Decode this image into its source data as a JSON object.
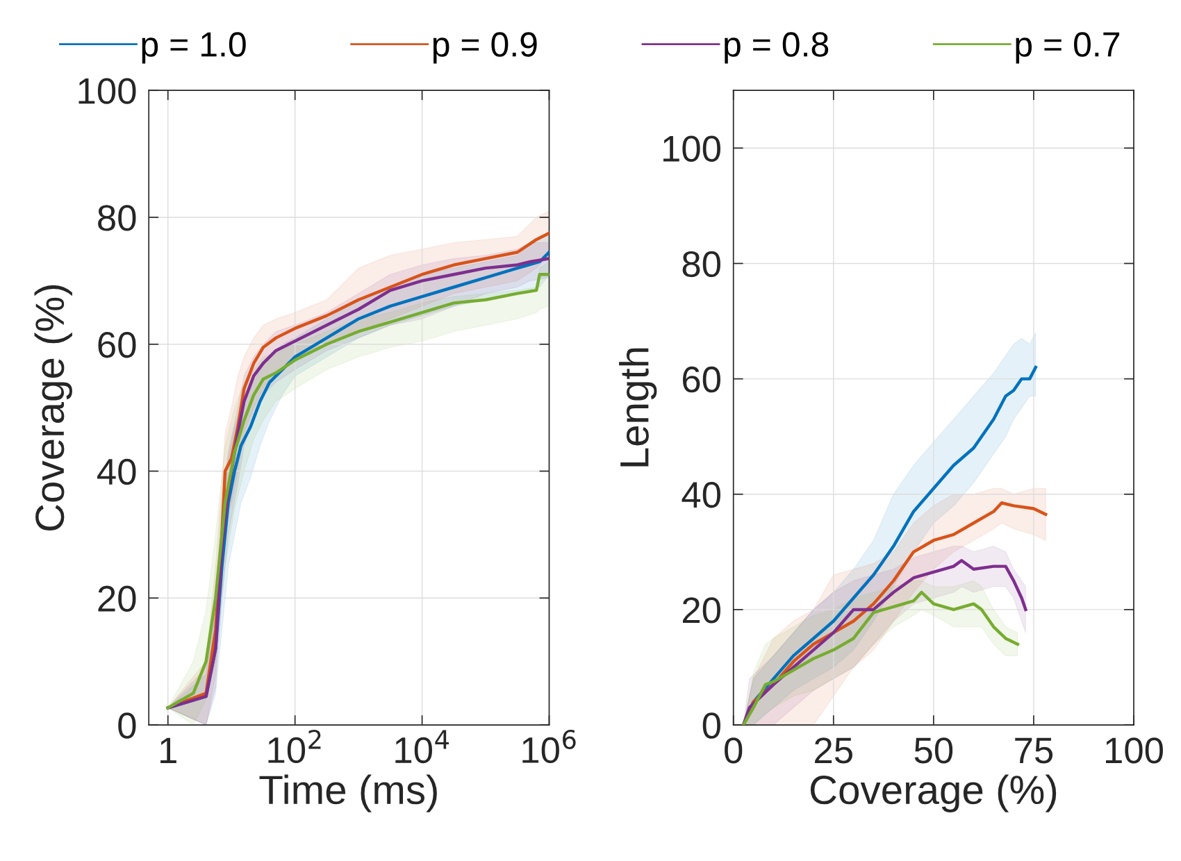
{
  "chart_data": [
    {
      "type": "line",
      "xlabel": "Time (ms)",
      "ylabel": "Coverage (%)",
      "log": "x",
      "xlim": [
        0.5,
        1000000
      ],
      "xticks": [
        1,
        {
          "value": 100,
          "label": "10$^{2}$"
        },
        {
          "value": 10000,
          "label": "10$^{4}$"
        },
        {
          "value": 1000000,
          "label": "10$^{6}$"
        }
      ],
      "ylim": [
        0,
        100
      ],
      "yticks": [
        0,
        20,
        40,
        60,
        80,
        100
      ],
      "grid": true,
      "legend": "top",
      "series": [
        {
          "name": "p = 1.0",
          "color": "#0072bd",
          "x": [
            1,
            3.98,
            5.62,
            7.08,
            8.91,
            11.2,
            14.1,
            20,
            28.2,
            39.8,
            63.1,
            100,
            316,
            1000,
            3162,
            10000,
            31623,
            100000,
            316228,
            707946,
            1000000
          ],
          "values": [
            2.7,
            4.5,
            12,
            25,
            35,
            40,
            44,
            47,
            51,
            54,
            56,
            58,
            61,
            64,
            66,
            67.5,
            69,
            70.5,
            72,
            73,
            74.5
          ],
          "lower": [
            2.7,
            0,
            5,
            15,
            25,
            30,
            35,
            39,
            44,
            48,
            52,
            55,
            58,
            61,
            63,
            64.5,
            66,
            67,
            68,
            69,
            71
          ],
          "upper": [
            2.7,
            8,
            18,
            32,
            42,
            47,
            50,
            53,
            56,
            58,
            60,
            61,
            64,
            67,
            69,
            71,
            72,
            73,
            74,
            77,
            77
          ]
        },
        {
          "name": "p = 0.9",
          "color": "#d95319",
          "x": [
            1,
            3.98,
            5.62,
            7.08,
            7.94,
            10,
            12.6,
            15.8,
            22.4,
            31.6,
            50.1,
            100,
            316,
            1000,
            3162,
            10000,
            31623,
            100000,
            316228,
            630957,
            1000000
          ],
          "values": [
            2.7,
            5,
            15,
            30,
            40,
            42,
            47,
            53,
            57,
            59.5,
            61,
            62.5,
            64.5,
            67,
            69,
            71,
            72.5,
            73.5,
            74.5,
            76.5,
            77.5
          ],
          "lower": [
            2.7,
            0,
            8,
            22,
            32,
            35,
            40,
            46,
            50,
            53,
            56,
            58,
            60,
            62,
            64,
            66,
            68,
            69,
            70,
            72,
            74
          ],
          "upper": [
            2.7,
            10,
            25,
            38,
            46,
            50,
            55,
            58,
            61,
            63,
            64,
            65,
            67,
            72,
            74,
            75,
            76,
            76.5,
            77,
            80,
            81
          ]
        },
        {
          "name": "p = 0.8",
          "color": "#7e2f8e",
          "x": [
            1,
            3.98,
            5.62,
            7.08,
            8.91,
            12.6,
            15.8,
            22.4,
            31.6,
            50.1,
            100,
            316,
            1000,
            3162,
            10000,
            31623,
            100000,
            316228,
            501187,
            1000000
          ],
          "values": [
            2.7,
            4.5,
            12,
            28,
            37,
            46,
            51,
            55,
            57,
            59,
            60.5,
            63,
            65.5,
            68.5,
            70,
            71,
            72,
            72.5,
            73,
            73.5
          ],
          "lower": [
            2.7,
            0,
            6,
            20,
            30,
            38,
            44,
            49,
            52,
            54,
            56,
            59,
            61,
            63,
            64,
            66,
            68,
            69,
            70,
            70.5
          ],
          "upper": [
            2.7,
            9,
            20,
            35,
            43,
            50,
            55,
            58,
            60,
            62,
            63,
            65,
            68,
            71,
            72.5,
            73.5,
            74,
            75,
            76,
            76
          ]
        },
        {
          "name": "p = 0.7",
          "color": "#77ac30",
          "x": [
            1,
            2.51,
            3.98,
            5.62,
            7.94,
            11.2,
            15.8,
            22.4,
            31.6,
            50.1,
            100,
            316,
            1000,
            3162,
            10000,
            31623,
            100000,
            316228,
            630957,
            707946,
            1000000
          ],
          "values": [
            2.7,
            5,
            10,
            20,
            35,
            43,
            48,
            52,
            54.5,
            55.5,
            57.5,
            60,
            62,
            63.5,
            65,
            66.5,
            67,
            68,
            68.5,
            71,
            71
          ],
          "lower": [
            2.7,
            0,
            4,
            10,
            25,
            34,
            40,
            45,
            48,
            51,
            53,
            56,
            58,
            59.5,
            60.5,
            62,
            63,
            64,
            65,
            65.5,
            66
          ],
          "upper": [
            2.7,
            10,
            18,
            30,
            44,
            50,
            54,
            56,
            58,
            58.5,
            60,
            62,
            64,
            65,
            66.5,
            67.5,
            68,
            68.5,
            69,
            72,
            73
          ]
        }
      ]
    },
    {
      "type": "line",
      "xlabel": "Coverage (%)",
      "ylabel": "Length",
      "xlim": [
        0,
        100
      ],
      "xticks": [
        0,
        25,
        50,
        75,
        100
      ],
      "ylim": [
        0,
        110
      ],
      "yticks": [
        0,
        20,
        40,
        60,
        80,
        100
      ],
      "grid": true,
      "series": [
        {
          "color": "#0072bd",
          "x": [
            2.5,
            5,
            10,
            15,
            20,
            25,
            30,
            35,
            40,
            45,
            50,
            55,
            60,
            65,
            68,
            70,
            72,
            74,
            75.5
          ],
          "values": [
            0,
            4,
            8,
            12,
            15,
            18,
            22,
            26,
            31,
            37,
            41,
            45,
            48,
            53,
            57,
            58,
            60,
            60,
            62
          ],
          "lower": [
            0,
            0,
            3,
            6,
            8,
            10,
            13,
            18,
            24,
            30,
            35,
            38,
            42,
            47,
            50,
            53,
            55,
            57,
            57
          ],
          "upper": [
            0,
            8,
            12,
            16,
            20,
            23,
            27,
            32,
            40,
            45,
            49,
            53,
            57,
            61,
            64,
            66,
            67,
            66,
            68
          ]
        },
        {
          "color": "#d95319",
          "x": [
            2.5,
            5,
            10,
            15,
            20,
            25,
            30,
            35,
            40,
            45,
            50,
            55,
            60,
            65,
            67,
            70,
            75,
            78
          ],
          "values": [
            0,
            4,
            7,
            11,
            14,
            16,
            18,
            21,
            25,
            30,
            32,
            33,
            35,
            37,
            38.5,
            38,
            37.5,
            36.5
          ],
          "lower": [
            0,
            0,
            0,
            0,
            0,
            5,
            10,
            13,
            18,
            23,
            27,
            30,
            32,
            34,
            35,
            34,
            33,
            32
          ],
          "upper": [
            0,
            8,
            15,
            18,
            20,
            26,
            27,
            28,
            30,
            35,
            38,
            40,
            40,
            41,
            41,
            40,
            41,
            41
          ]
        },
        {
          "color": "#7e2f8e",
          "x": [
            2.5,
            4,
            10,
            15,
            20,
            25,
            30,
            35,
            40,
            45,
            50,
            55,
            57,
            60,
            65,
            68,
            70,
            72,
            73
          ],
          "values": [
            0,
            3,
            7,
            10,
            13,
            16,
            20,
            20,
            23,
            25.5,
            26.5,
            27.5,
            28.5,
            27,
            27.5,
            27.5,
            25,
            22,
            20
          ],
          "lower": [
            0,
            0,
            0,
            3,
            6,
            8,
            10,
            14,
            18,
            21,
            22,
            23,
            24,
            23,
            24,
            24,
            22,
            18,
            16
          ],
          "upper": [
            0,
            8,
            12,
            16,
            20,
            23,
            25,
            26,
            27,
            29,
            30,
            31,
            31,
            30,
            31,
            30,
            27,
            25,
            24
          ]
        },
        {
          "color": "#77ac30",
          "x": [
            2.5,
            5,
            8,
            10,
            15,
            20,
            25,
            30,
            35,
            40,
            45,
            47,
            50,
            55,
            60,
            62,
            65,
            68,
            71
          ],
          "values": [
            0,
            3,
            7,
            7.5,
            9.5,
            11.5,
            13,
            15,
            19.5,
            20.5,
            21.5,
            23,
            21,
            20,
            21,
            20,
            17,
            15,
            14
          ],
          "lower": [
            0,
            0,
            2,
            3,
            5,
            6,
            8,
            10,
            14,
            17,
            19,
            20,
            19,
            17,
            17,
            17,
            14,
            12,
            12
          ],
          "upper": [
            0,
            9,
            14,
            15,
            17,
            19,
            20,
            22,
            23,
            24,
            25,
            25,
            24,
            24,
            25,
            24,
            20,
            17,
            16
          ]
        }
      ]
    }
  ]
}
